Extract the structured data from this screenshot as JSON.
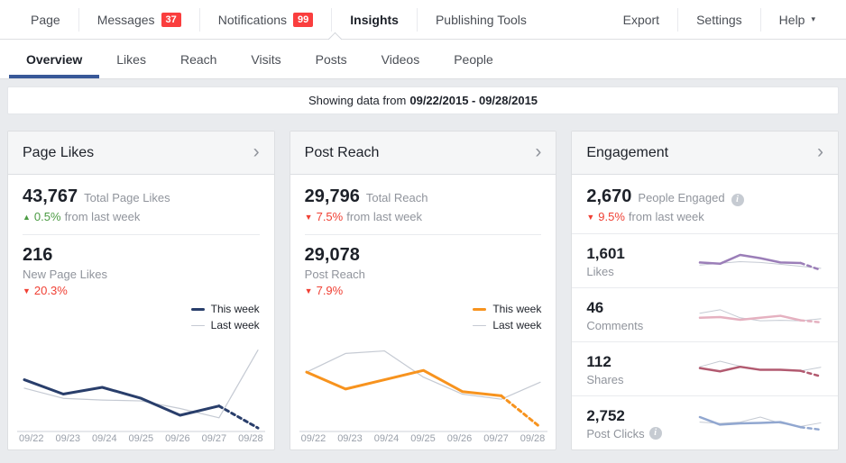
{
  "icons": {
    "chevron_right": "›",
    "caret_down": "▾",
    "arrow_up": "▲",
    "arrow_down": "▼",
    "info": "i"
  },
  "colors": {
    "badge_red": "#fa3e3e",
    "delta_red": "#f04034",
    "delta_green": "#4b9b43",
    "active_tab_underline": "#385898",
    "this_week_navy": "#293e6b",
    "this_week_orange": "#f7931e",
    "last_week_gray": "#c5cad3",
    "likes_purple": "#9b7eb8",
    "comments_pink": "#e5b1c0",
    "shares_maroon": "#b25a70",
    "post_clicks_blue": "#91a7d0"
  },
  "topnav": {
    "left": [
      {
        "label": "Page"
      },
      {
        "label": "Messages",
        "badge": "37"
      },
      {
        "label": "Notifications",
        "badge": "99"
      },
      {
        "label": "Insights"
      },
      {
        "label": "Publishing Tools"
      }
    ],
    "right": [
      {
        "label": "Export"
      },
      {
        "label": "Settings"
      },
      {
        "label": "Help"
      }
    ]
  },
  "tabs": [
    {
      "label": "Overview"
    },
    {
      "label": "Likes"
    },
    {
      "label": "Reach"
    },
    {
      "label": "Visits"
    },
    {
      "label": "Posts"
    },
    {
      "label": "Videos"
    },
    {
      "label": "People"
    }
  ],
  "banner": {
    "prefix": "Showing data from",
    "date_range": "09/22/2015 - 09/28/2015"
  },
  "cards": {
    "page_likes": {
      "title": "Page Likes",
      "total": {
        "value": "43,767",
        "label": "Total Page Likes",
        "delta": "0.5%",
        "suffix": "from last week"
      },
      "new": {
        "value": "216",
        "label": "New Page Likes",
        "delta": "20.3%"
      },
      "legend": {
        "this_week": "This week",
        "last_week": "Last week"
      }
    },
    "post_reach": {
      "title": "Post Reach",
      "total": {
        "value": "29,796",
        "label": "Total Reach",
        "delta": "7.5%",
        "suffix": "from last week"
      },
      "post": {
        "value": "29,078",
        "label": "Post Reach",
        "delta": "7.9%"
      },
      "legend": {
        "this_week": "This week",
        "last_week": "Last week"
      }
    },
    "engagement": {
      "title": "Engagement",
      "people": {
        "value": "2,670",
        "label": "People Engaged",
        "delta": "9.5%",
        "suffix": "from last week"
      },
      "rows": [
        {
          "value": "1,601",
          "label": "Likes"
        },
        {
          "value": "46",
          "label": "Comments"
        },
        {
          "value": "112",
          "label": "Shares"
        },
        {
          "value": "2,752",
          "label": "Post Clicks"
        }
      ]
    }
  },
  "chart_data": [
    {
      "id": "page-likes-week-chart",
      "type": "line",
      "x": [
        "09/22",
        "09/23",
        "09/24",
        "09/25",
        "09/26",
        "09/27",
        "09/28"
      ],
      "ylim": [
        0,
        100
      ],
      "axis": true,
      "pad_x": 8,
      "legend_position": "top-right",
      "grid": false,
      "series": [
        {
          "name": "This week",
          "color": "#293e6b",
          "width": 3,
          "dash_last": true,
          "values": [
            59,
            42,
            50,
            37,
            17,
            28,
            2
          ]
        },
        {
          "name": "Last week",
          "color": "#c5cad3",
          "width": 1.2,
          "dash_last": false,
          "values": [
            49,
            37,
            35,
            34,
            25,
            14,
            94
          ]
        }
      ]
    },
    {
      "id": "post-reach-week-chart",
      "type": "line",
      "x": [
        "09/22",
        "09/23",
        "09/24",
        "09/25",
        "09/26",
        "09/27",
        "09/28"
      ],
      "ylim": [
        0,
        100
      ],
      "axis": true,
      "pad_x": 8,
      "legend_position": "top-right",
      "grid": false,
      "series": [
        {
          "name": "This week",
          "color": "#f7931e",
          "width": 3,
          "dash_last": true,
          "values": [
            68,
            48,
            59,
            70,
            45,
            40,
            3
          ]
        },
        {
          "name": "Last week",
          "color": "#c5cad3",
          "width": 1.2,
          "dash_last": false,
          "values": [
            68,
            90,
            93,
            62,
            42,
            36,
            56
          ]
        }
      ]
    },
    {
      "id": "likes-sparkline",
      "type": "line",
      "ylim": [
        0,
        100
      ],
      "axis": false,
      "pad_x": 3,
      "grid": false,
      "series": [
        {
          "name": "This week",
          "color": "#9b7eb8",
          "width": 2.5,
          "dash_last": true,
          "values": [
            45,
            40,
            75,
            62,
            45,
            43,
            15
          ]
        },
        {
          "name": "Last week",
          "color": "#c5cad3",
          "width": 1,
          "dash_last": false,
          "values": [
            35,
            42,
            48,
            45,
            38,
            30,
            22
          ]
        }
      ]
    },
    {
      "id": "comments-sparkline",
      "type": "line",
      "ylim": [
        0,
        100
      ],
      "axis": false,
      "pad_x": 3,
      "grid": false,
      "series": [
        {
          "name": "This week",
          "color": "#e5b1c0",
          "width": 2.5,
          "dash_last": true,
          "values": [
            40,
            43,
            32,
            40,
            48,
            30,
            22
          ]
        },
        {
          "name": "Last week",
          "color": "#c5cad3",
          "width": 1,
          "dash_last": false,
          "values": [
            58,
            72,
            40,
            28,
            30,
            28,
            36
          ]
        }
      ]
    },
    {
      "id": "shares-sparkline",
      "type": "line",
      "ylim": [
        0,
        100
      ],
      "axis": false,
      "pad_x": 3,
      "grid": false,
      "series": [
        {
          "name": "This week",
          "color": "#b25a70",
          "width": 2.5,
          "dash_last": true,
          "values": [
            55,
            42,
            60,
            48,
            48,
            44,
            22
          ]
        },
        {
          "name": "Last week",
          "color": "#c5cad3",
          "width": 1,
          "dash_last": false,
          "values": [
            60,
            82,
            62,
            50,
            46,
            44,
            58
          ]
        }
      ]
    },
    {
      "id": "post-clicks-sparkline",
      "type": "line",
      "ylim": [
        0,
        100
      ],
      "axis": false,
      "pad_x": 3,
      "grid": false,
      "series": [
        {
          "name": "This week",
          "color": "#91a7d0",
          "width": 2.5,
          "dash_last": true,
          "values": [
            75,
            45,
            50,
            52,
            55,
            35,
            25
          ]
        },
        {
          "name": "Last week",
          "color": "#c5cad3",
          "width": 1,
          "dash_last": false,
          "values": [
            55,
            50,
            55,
            75,
            50,
            38,
            52
          ]
        }
      ]
    }
  ]
}
